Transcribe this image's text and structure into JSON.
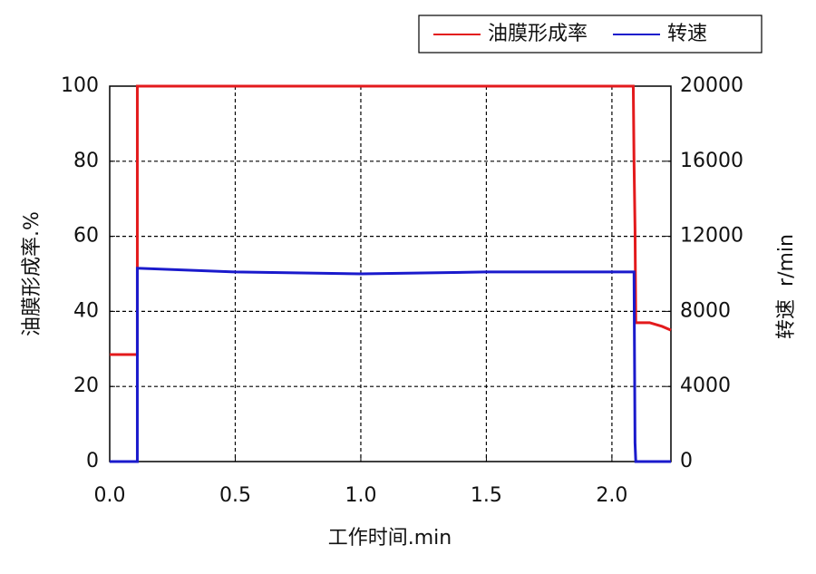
{
  "chart_data": {
    "type": "line",
    "xlabel": "工作时间.min",
    "ylabel": "油膜形成率.%",
    "y2label": "转速  r/min",
    "x": [
      0,
      0.11,
      0.11,
      0.5,
      1.0,
      1.5,
      2.0,
      2.085,
      2.088,
      2.092,
      2.095,
      2.1,
      2.15,
      2.2,
      2.235
    ],
    "series": [
      {
        "name": "油膜形成率",
        "color": "#e31a1c",
        "values": [
          28.5,
          28.5,
          100,
          100,
          100,
          100,
          100,
          100,
          80,
          62,
          37,
          37,
          37,
          36,
          35
        ]
      },
      {
        "name": "转速",
        "color": "#1a1acc",
        "axis": "y2",
        "values": [
          0,
          0,
          10300,
          10100,
          10000,
          10100,
          10100,
          10100,
          10100,
          1000,
          0,
          0,
          0,
          0,
          0
        ]
      }
    ],
    "xlim": [
      0,
      2.235
    ],
    "xticks": [
      {
        "value": 0,
        "label": "0.0"
      },
      0.5,
      {
        "value": 1,
        "label": "1.0"
      },
      1.5,
      {
        "value": 2,
        "label": "2.0"
      }
    ],
    "ylim": [
      0,
      100
    ],
    "yticks": [
      0,
      20,
      40,
      60,
      80,
      100
    ],
    "y2lim": [
      0,
      20000
    ],
    "y2ticks": [
      0,
      4000,
      8000,
      12000,
      16000,
      20000
    ],
    "grid": true,
    "legend": "top-right"
  }
}
